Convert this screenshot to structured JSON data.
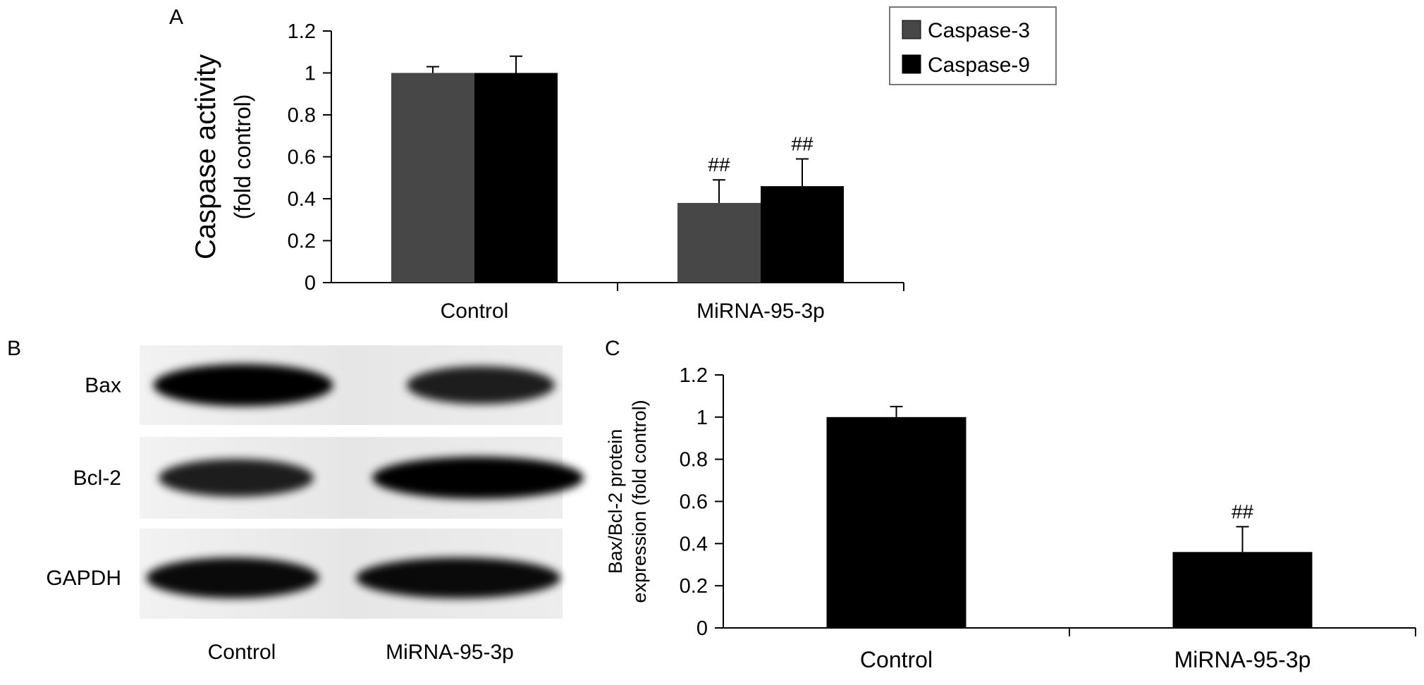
{
  "panels": {
    "a": "A",
    "b": "B",
    "c": "C"
  },
  "colors": {
    "caspase3": "#474747",
    "caspase9": "#000000",
    "single": "#000000"
  },
  "chart_data": [
    {
      "panel": "A",
      "type": "bar",
      "categories": [
        "Control",
        "MiRNA-95-3p"
      ],
      "ylabel_line1": "Caspase activity",
      "ylabel_line2": "(fold control)",
      "ylim": [
        0,
        1.2
      ],
      "yticks": [
        "0",
        "0.2",
        "0.4",
        "0.6",
        "0.8",
        "1",
        "1.2"
      ],
      "legend_position": "top-right",
      "series": [
        {
          "name": "Caspase-3",
          "values": [
            1.0,
            0.38
          ],
          "errors": [
            0.03,
            0.11
          ],
          "annotations": [
            "",
            "##"
          ]
        },
        {
          "name": "Caspase-9",
          "values": [
            1.0,
            0.46
          ],
          "errors": [
            0.08,
            0.13
          ],
          "annotations": [
            "",
            "##"
          ]
        }
      ]
    },
    {
      "panel": "C",
      "type": "bar",
      "categories": [
        "Control",
        "MiRNA-95-3p"
      ],
      "ylabel_line1": "Bax/Bcl-2 protein",
      "ylabel_line2": "expression (fold control)",
      "ylim": [
        0,
        1.2
      ],
      "yticks": [
        "0",
        "0.2",
        "0.4",
        "0.6",
        "0.8",
        "1",
        "1.2"
      ],
      "series": [
        {
          "values": [
            1.0,
            0.36
          ],
          "errors": [
            0.05,
            0.12
          ],
          "annotations": [
            "",
            "##"
          ]
        }
      ]
    }
  ],
  "blot": {
    "rows": [
      {
        "label": "Bax",
        "intensity": [
          1.0,
          0.72
        ]
      },
      {
        "label": "Bcl-2",
        "intensity": [
          0.72,
          1.0
        ]
      },
      {
        "label": "GAPDH",
        "intensity": [
          0.9,
          0.9
        ]
      }
    ],
    "lanes": [
      "Control",
      "MiRNA-95-3p"
    ]
  }
}
